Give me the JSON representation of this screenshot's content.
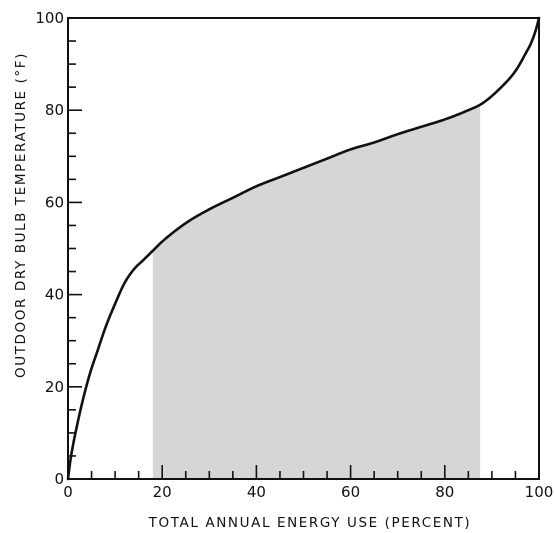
{
  "chart_data": {
    "type": "line",
    "title": "",
    "xlabel": "TOTAL ANNUAL ENERGY USE (PERCENT)",
    "ylabel": "OUTDOOR DRY BULB TEMPERATURE (°F)",
    "xlim": [
      0,
      100
    ],
    "ylim": [
      0,
      100
    ],
    "x_ticks": [
      "0",
      "20",
      "40",
      "60",
      "80",
      "100"
    ],
    "y_ticks": [
      "0",
      "20",
      "40",
      "60",
      "80",
      "100"
    ],
    "x_minor_step": 5,
    "y_minor_step": 5,
    "grid": false,
    "legend": "none",
    "series": [
      {
        "x": [
          0,
          0.5,
          1,
          2,
          3,
          4,
          5,
          6,
          8,
          10,
          12,
          14,
          16,
          18,
          20,
          25,
          30,
          35,
          40,
          45,
          50,
          55,
          60,
          65,
          70,
          75,
          80,
          85,
          88,
          92,
          95,
          97,
          98.5,
          99.5,
          100
        ],
        "y": [
          0,
          4,
          7,
          12,
          16.5,
          20.5,
          24,
          27,
          33,
          38,
          42.5,
          45.5,
          47.5,
          49.5,
          51.5,
          55.5,
          58.5,
          61,
          63.5,
          65.5,
          67.5,
          69.5,
          71.5,
          73,
          74.8,
          76.4,
          78,
          80,
          81.5,
          85,
          88.5,
          92,
          95,
          98,
          100
        ]
      }
    ],
    "shaded_region": {
      "x_start": 18,
      "x_end": 87.5,
      "color": "#d6d6d6"
    },
    "line_color": "#111111"
  }
}
